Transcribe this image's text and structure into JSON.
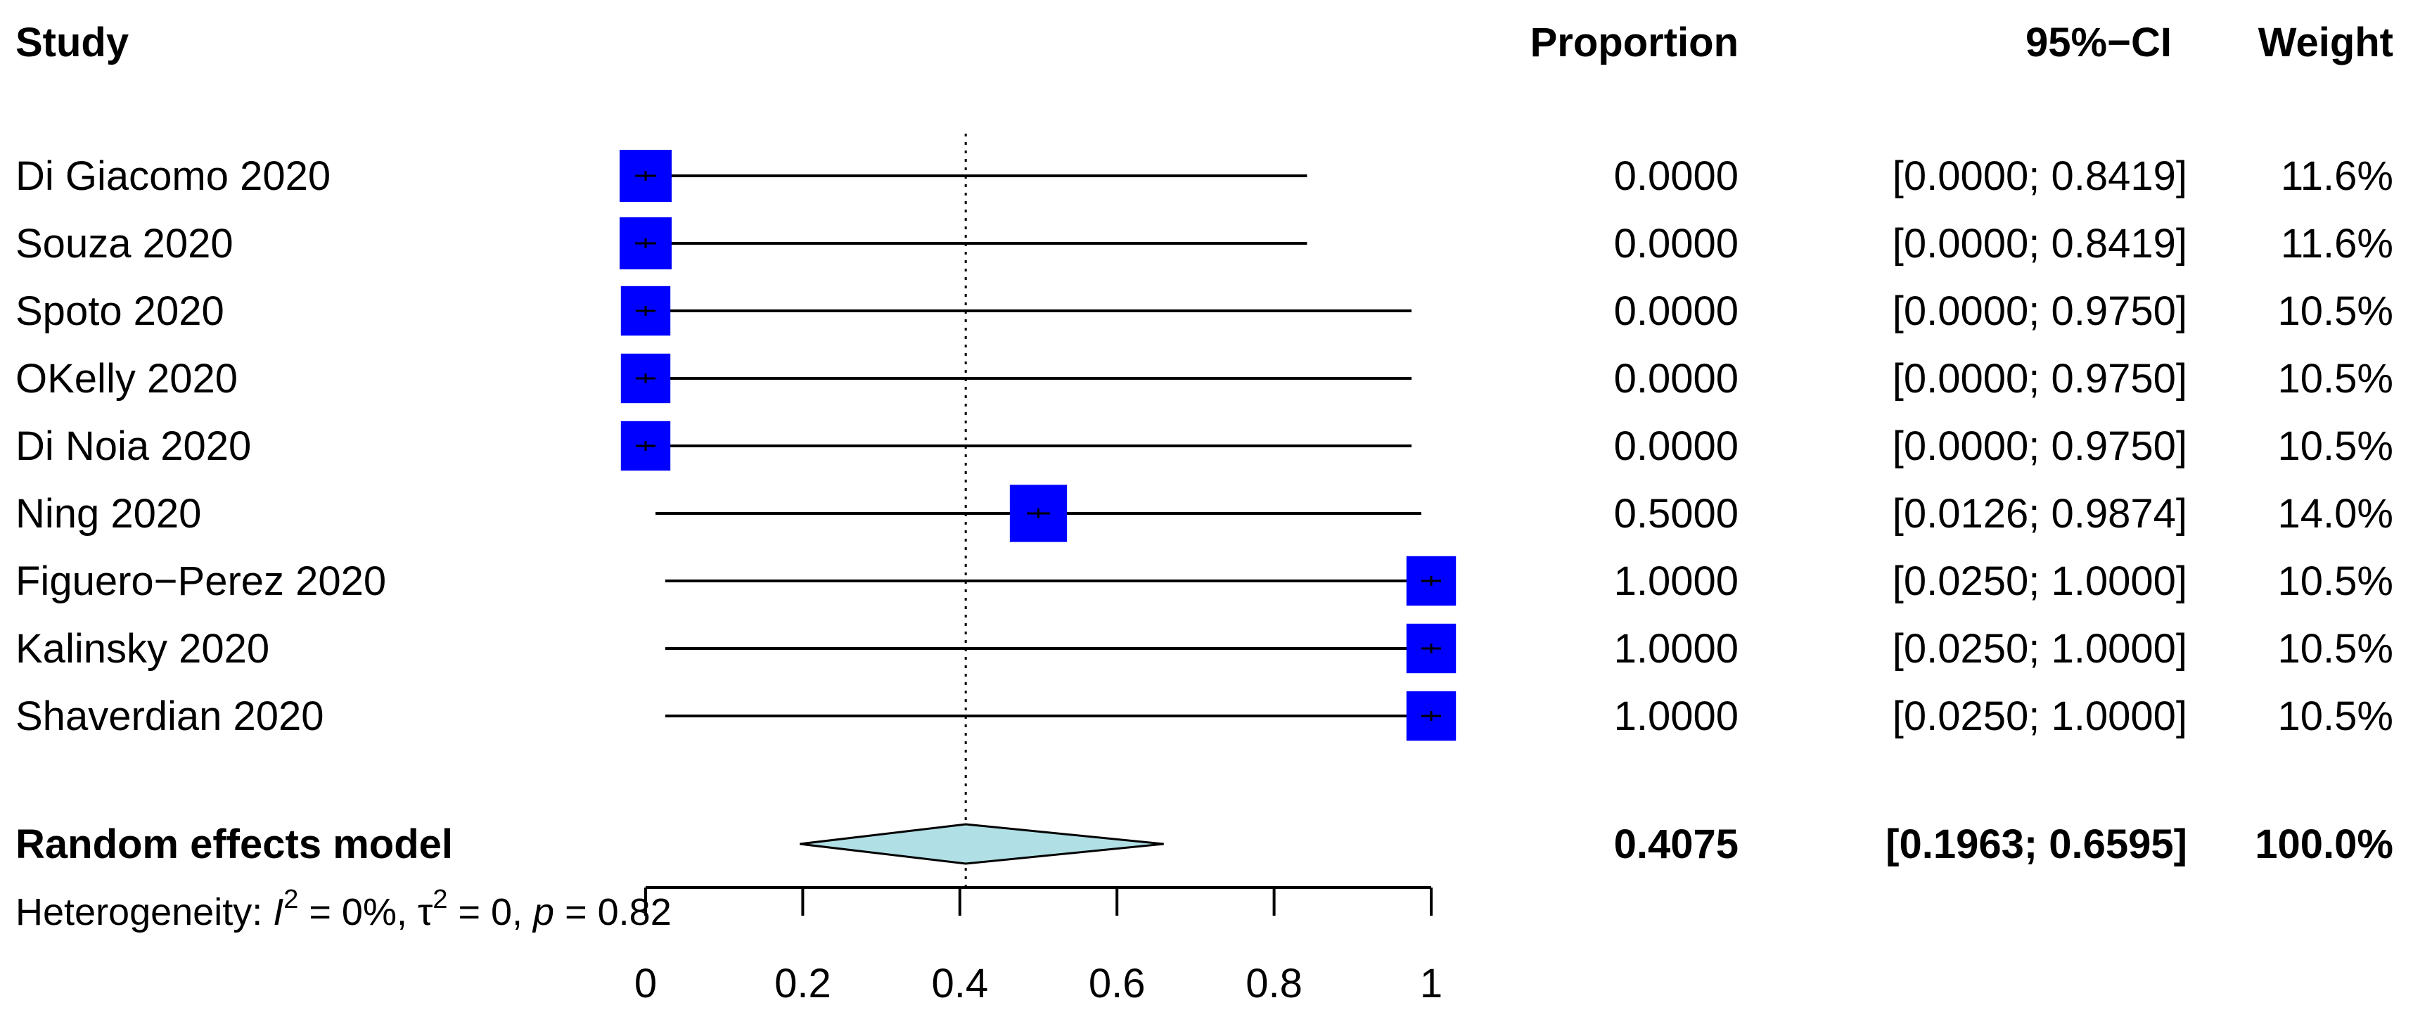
{
  "chart_data": {
    "type": "forest",
    "headers": {
      "study": "Study",
      "proportion": "Proportion",
      "ci": "95%−CI",
      "weight": "Weight"
    },
    "studies": [
      {
        "name": "Di Giacomo 2020",
        "proportion": "0.0000",
        "ci": "[0.0000; 0.8419]",
        "weight": "11.6%",
        "est": 0.0,
        "lower": 0.0,
        "upper": 0.8419,
        "w": 11.6
      },
      {
        "name": "Souza 2020",
        "proportion": "0.0000",
        "ci": "[0.0000; 0.8419]",
        "weight": "11.6%",
        "est": 0.0,
        "lower": 0.0,
        "upper": 0.8419,
        "w": 11.6
      },
      {
        "name": "Spoto 2020",
        "proportion": "0.0000",
        "ci": "[0.0000; 0.9750]",
        "weight": "10.5%",
        "est": 0.0,
        "lower": 0.0,
        "upper": 0.975,
        "w": 10.5
      },
      {
        "name": " OKelly 2020",
        "proportion": "0.0000",
        "ci": "[0.0000; 0.9750]",
        "weight": "10.5%",
        "est": 0.0,
        "lower": 0.0,
        "upper": 0.975,
        "w": 10.5
      },
      {
        "name": " Di Noia 2020",
        "proportion": "0.0000",
        "ci": "[0.0000; 0.9750]",
        "weight": "10.5%",
        "est": 0.0,
        "lower": 0.0,
        "upper": 0.975,
        "w": 10.5
      },
      {
        "name": "Ning 2020",
        "proportion": "0.5000",
        "ci": "[0.0126; 0.9874]",
        "weight": "14.0%",
        "est": 0.5,
        "lower": 0.0126,
        "upper": 0.9874,
        "w": 14.0
      },
      {
        "name": "Figuero−Perez 2020",
        "proportion": "1.0000",
        "ci": "[0.0250; 1.0000]",
        "weight": "10.5%",
        "est": 1.0,
        "lower": 0.025,
        "upper": 1.0,
        "w": 10.5
      },
      {
        "name": "Kalinsky 2020",
        "proportion": "1.0000",
        "ci": "[0.0250; 1.0000]",
        "weight": "10.5%",
        "est": 1.0,
        "lower": 0.025,
        "upper": 1.0,
        "w": 10.5
      },
      {
        "name": "Shaverdian 2020",
        "proportion": "1.0000",
        "ci": "[0.0250; 1.0000]",
        "weight": "10.5%",
        "est": 1.0,
        "lower": 0.025,
        "upper": 1.0,
        "w": 10.5
      }
    ],
    "summary": {
      "name": "Random effects model",
      "proportion": "0.4075",
      "ci": "[0.1963; 0.6595]",
      "weight": "100.0%",
      "est": 0.4075,
      "lower": 0.1963,
      "upper": 0.6595
    },
    "heterogeneity": {
      "prefix": "Heterogeneity: ",
      "i2_symbol": "I",
      "i2_sup": "2",
      "i2_value": " = 0%, ",
      "tau_symbol": "τ",
      "tau_sup": "2",
      "tau_value": " = 0, ",
      "p_symbol": "p",
      "p_value": " = 0.82"
    },
    "xaxis": {
      "ticks": [
        0,
        0.2,
        0.4,
        0.6,
        0.8,
        1
      ],
      "tick_labels": [
        "0",
        "0.2",
        "0.4",
        "0.6",
        "0.8",
        "1"
      ],
      "xlim": [
        0,
        1
      ]
    },
    "reference_line": 0.4075,
    "colors": {
      "square": "#0000ff",
      "diamond": "#b0e0e6",
      "line": "#000000"
    }
  }
}
